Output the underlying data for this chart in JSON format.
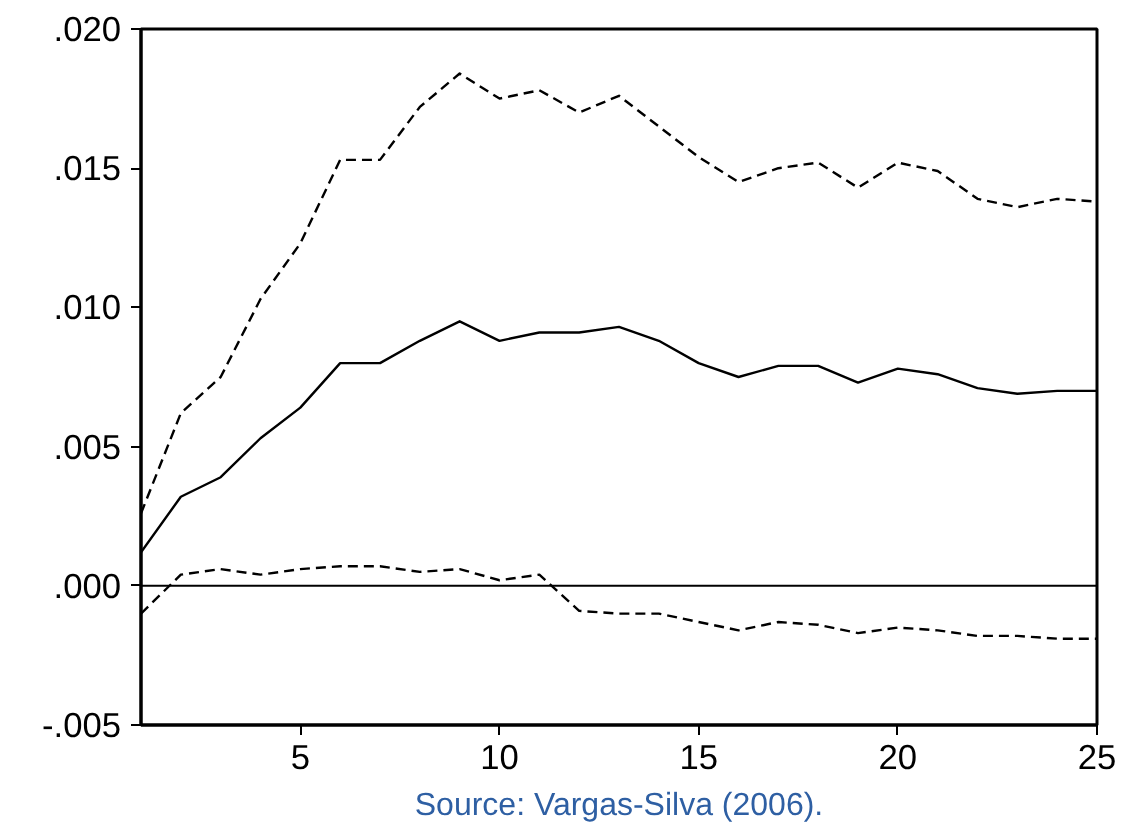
{
  "chart_data": {
    "type": "line",
    "x": [
      1,
      2,
      3,
      4,
      5,
      6,
      7,
      8,
      9,
      10,
      11,
      12,
      13,
      14,
      15,
      16,
      17,
      18,
      19,
      20,
      21,
      22,
      23,
      24,
      25
    ],
    "series": [
      {
        "color": "#000000",
        "line_style": "dashed",
        "values": [
          0.0026,
          0.0062,
          0.0075,
          0.0103,
          0.0123,
          0.0153,
          0.0153,
          0.0172,
          0.0184,
          0.0175,
          0.0178,
          0.017,
          0.0176,
          0.0165,
          0.0154,
          0.0145,
          0.015,
          0.0152,
          0.0143,
          0.0152,
          0.0149,
          0.0139,
          0.0136,
          0.0139,
          0.0138
        ]
      },
      {
        "color": "#000000",
        "values": [
          0.0012,
          0.0032,
          0.0039,
          0.0053,
          0.0064,
          0.008,
          0.008,
          0.0088,
          0.0095,
          0.0088,
          0.0091,
          0.0091,
          0.0093,
          0.0088,
          0.008,
          0.0075,
          0.0079,
          0.0079,
          0.0073,
          0.0078,
          0.0076,
          0.0071,
          0.0069,
          0.007,
          0.007
        ]
      },
      {
        "color": "#000000",
        "line_style": "dashed",
        "values": [
          -0.001,
          0.0004,
          0.0006,
          0.0004,
          0.0006,
          0.0007,
          0.0007,
          0.0005,
          0.0006,
          0.0002,
          0.0004,
          -0.0009,
          -0.001,
          -0.001,
          -0.0013,
          -0.0016,
          -0.0013,
          -0.0014,
          -0.0017,
          -0.0015,
          -0.0016,
          -0.0018,
          -0.0018,
          -0.0019,
          -0.0019
        ]
      }
    ],
    "xlim": [
      1,
      25
    ],
    "xticks": [
      5,
      10,
      15,
      20,
      25
    ],
    "ylim": [
      -0.005,
      0.02
    ],
    "yticks": [
      {
        "value": -0.005,
        "label": "-.005"
      },
      {
        "value": 0.0,
        "label": ".000"
      },
      {
        "value": 0.005,
        "label": ".005"
      },
      {
        "value": 0.01,
        "label": ".010"
      },
      {
        "value": 0.015,
        "label": ".015"
      },
      {
        "value": 0.02,
        "label": ".020"
      }
    ],
    "ref_lines": [
      {
        "axis": "y",
        "value": 0,
        "color": "#000000"
      }
    ],
    "annotations": [
      "Source: Vargas-Silva (2006)."
    ],
    "line_style": "solid"
  }
}
